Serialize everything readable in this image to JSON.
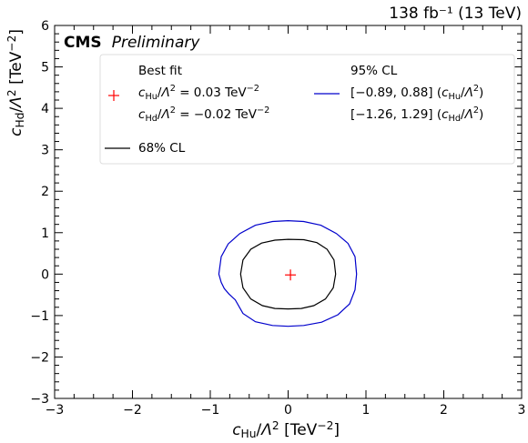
{
  "chart_data": {
    "type": "contour",
    "lumi_label": "138 fb⁻¹ (13 TeV)",
    "experiment": "CMS",
    "status": "Preliminary",
    "xlabel": "c_Hu/Λ² [TeV⁻²]",
    "ylabel": "c_Hd/Λ² [TeV⁻²]",
    "xlim": [
      -3,
      3
    ],
    "ylim": [
      -3,
      6
    ],
    "xticks": [
      -3,
      -2,
      -1,
      0,
      1,
      2,
      3
    ],
    "yticks": [
      -3,
      -2,
      -1,
      0,
      1,
      2,
      3,
      4,
      5,
      6
    ],
    "legend": {
      "placement": "upper",
      "best_fit": {
        "title": "Best fit",
        "line1": "c_Hu/Λ² = 0.03 TeV⁻²",
        "line2": "c_Hd/Λ² = −0.02 TeV⁻²",
        "color": "#ff0000"
      },
      "cl95": {
        "title": "95% CL",
        "line1": "[−0.89, 0.88] (c_Hu/Λ²)",
        "line2": "[−1.26, 1.29] (c_Hd/Λ²)",
        "color": "#0000cc"
      },
      "cl68": {
        "title": "68% CL",
        "color": "#000000"
      }
    },
    "best_fit_point": {
      "x": 0.03,
      "y": -0.02
    },
    "contours": [
      {
        "name": "95% CL",
        "color": "#0000cc",
        "points": [
          [
            -0.89,
            0.0
          ],
          [
            -0.86,
            0.42
          ],
          [
            -0.77,
            0.73
          ],
          [
            -0.62,
            0.98
          ],
          [
            -0.42,
            1.18
          ],
          [
            -0.2,
            1.27
          ],
          [
            0.0,
            1.29
          ],
          [
            0.2,
            1.27
          ],
          [
            0.42,
            1.18
          ],
          [
            0.62,
            0.98
          ],
          [
            0.77,
            0.74
          ],
          [
            0.86,
            0.42
          ],
          [
            0.88,
            0.0
          ],
          [
            0.86,
            -0.38
          ],
          [
            0.79,
            -0.72
          ],
          [
            0.64,
            -0.98
          ],
          [
            0.43,
            -1.16
          ],
          [
            0.2,
            -1.24
          ],
          [
            0.0,
            -1.26
          ],
          [
            -0.2,
            -1.24
          ],
          [
            -0.42,
            -1.15
          ],
          [
            -0.58,
            -0.95
          ],
          [
            -0.68,
            -0.62
          ],
          [
            -0.76,
            -0.48
          ],
          [
            -0.82,
            -0.35
          ],
          [
            -0.86,
            -0.2
          ],
          [
            -0.89,
            0.0
          ]
        ]
      },
      {
        "name": "68% CL",
        "color": "#000000",
        "points": [
          [
            -0.61,
            0.0
          ],
          [
            -0.58,
            0.34
          ],
          [
            -0.48,
            0.6
          ],
          [
            -0.34,
            0.75
          ],
          [
            -0.17,
            0.82
          ],
          [
            0.0,
            0.84
          ],
          [
            0.2,
            0.83
          ],
          [
            0.37,
            0.76
          ],
          [
            0.5,
            0.6
          ],
          [
            0.59,
            0.34
          ],
          [
            0.61,
            0.0
          ],
          [
            0.58,
            -0.33
          ],
          [
            0.48,
            -0.6
          ],
          [
            0.33,
            -0.76
          ],
          [
            0.17,
            -0.83
          ],
          [
            0.0,
            -0.84
          ],
          [
            -0.17,
            -0.83
          ],
          [
            -0.33,
            -0.76
          ],
          [
            -0.48,
            -0.6
          ],
          [
            -0.58,
            -0.33
          ],
          [
            -0.61,
            0.0
          ]
        ]
      }
    ]
  }
}
